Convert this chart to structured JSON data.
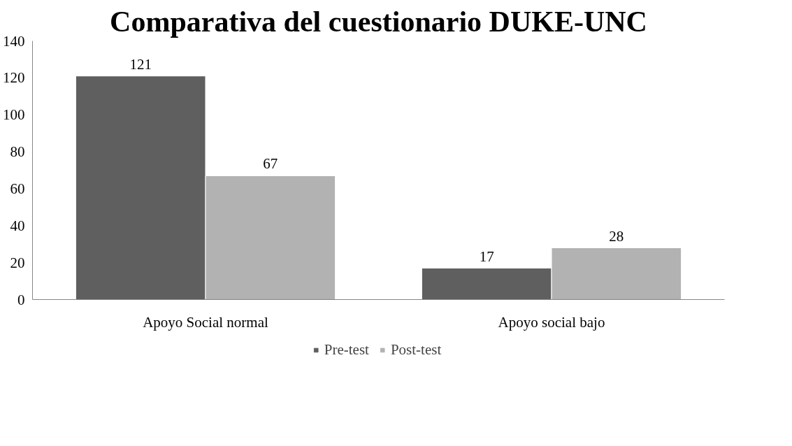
{
  "chart_data": {
    "type": "bar",
    "title": "Comparativa del cuestionario DUKE-UNC",
    "categories": [
      "Apoyo Social normal",
      "Apoyo social bajo"
    ],
    "series": [
      {
        "name": "Pre-test",
        "color": "#5f5f5f",
        "values": [
          121,
          17
        ]
      },
      {
        "name": "Post-test",
        "color": "#b2b2b2",
        "values": [
          67,
          28
        ]
      }
    ],
    "ylim": [
      0,
      140
    ],
    "yticks": [
      0,
      20,
      40,
      60,
      80,
      100,
      120,
      140
    ],
    "data_labels": true,
    "grid": false,
    "legend": "bottom"
  }
}
